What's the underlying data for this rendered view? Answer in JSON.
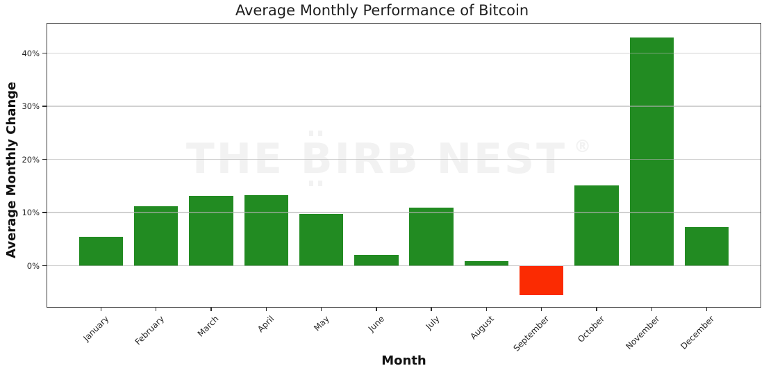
{
  "figure": {
    "watermark": {
      "prefix": "THE ",
      "bitcoin_letter": "B",
      "suffix": "IRB NEST",
      "registered_mark": "®",
      "color": "#f2f2f2"
    }
  },
  "chart_data": {
    "type": "bar",
    "title": "Average Monthly Performance of Bitcoin",
    "xlabel": "Month",
    "ylabel": "Average Monthly Change",
    "categories": [
      "January",
      "February",
      "March",
      "April",
      "May",
      "June",
      "July",
      "August",
      "September",
      "October",
      "November",
      "December"
    ],
    "values": [
      5.5,
      11.2,
      13.1,
      13.3,
      9.7,
      2.1,
      10.9,
      0.9,
      -5.5,
      15.1,
      43.0,
      7.3
    ],
    "value_unit": "%",
    "ylim": [
      -7.9,
      45.7
    ],
    "yticks": [
      0,
      10,
      20,
      30,
      40
    ],
    "ytick_labels": [
      "0%",
      "10%",
      "20%",
      "30%",
      "40%"
    ],
    "grid": true,
    "legend": false,
    "bar_width_fraction": 0.8,
    "tick_label_rotation_deg": 45,
    "positive_color": "#228B22",
    "negative_color": "#FB2B02"
  }
}
